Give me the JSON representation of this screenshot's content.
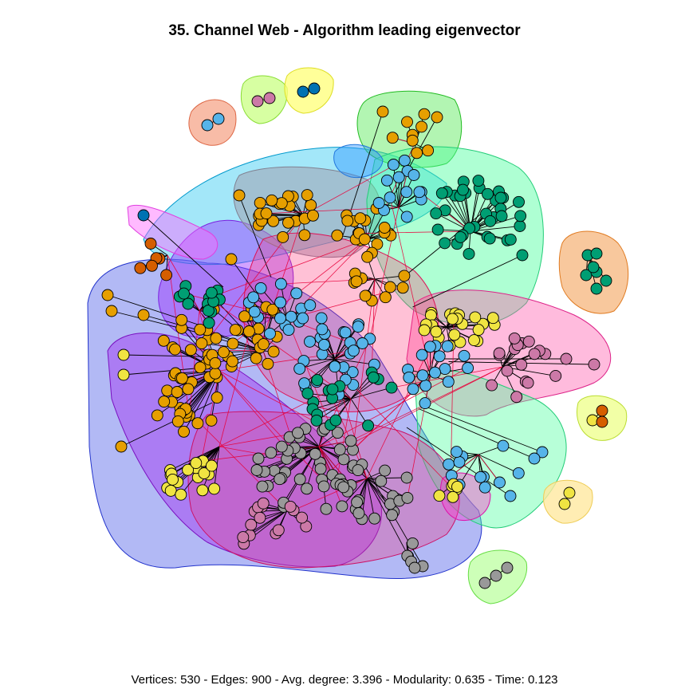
{
  "title": "35. Channel Web - Algorithm leading eigenvector",
  "caption": "Vertices: 530 - Edges: 900 - Avg. degree: 3.396 - Modularity: 0.635 - Time: 0.123",
  "stats": {
    "vertices": 530,
    "edges": 900,
    "avg_degree": 3.396,
    "modularity": 0.635,
    "time": 0.123
  },
  "colors": {
    "orange": "#E69F00",
    "skyblue": "#56B4E9",
    "green": "#009E73",
    "yellow": "#F0E442",
    "blue": "#0072B2",
    "vermillion": "#D55E00",
    "pink": "#CC79A7",
    "grey": "#999999",
    "edge": "#000000",
    "inter_edge": "#E8003A"
  }
}
